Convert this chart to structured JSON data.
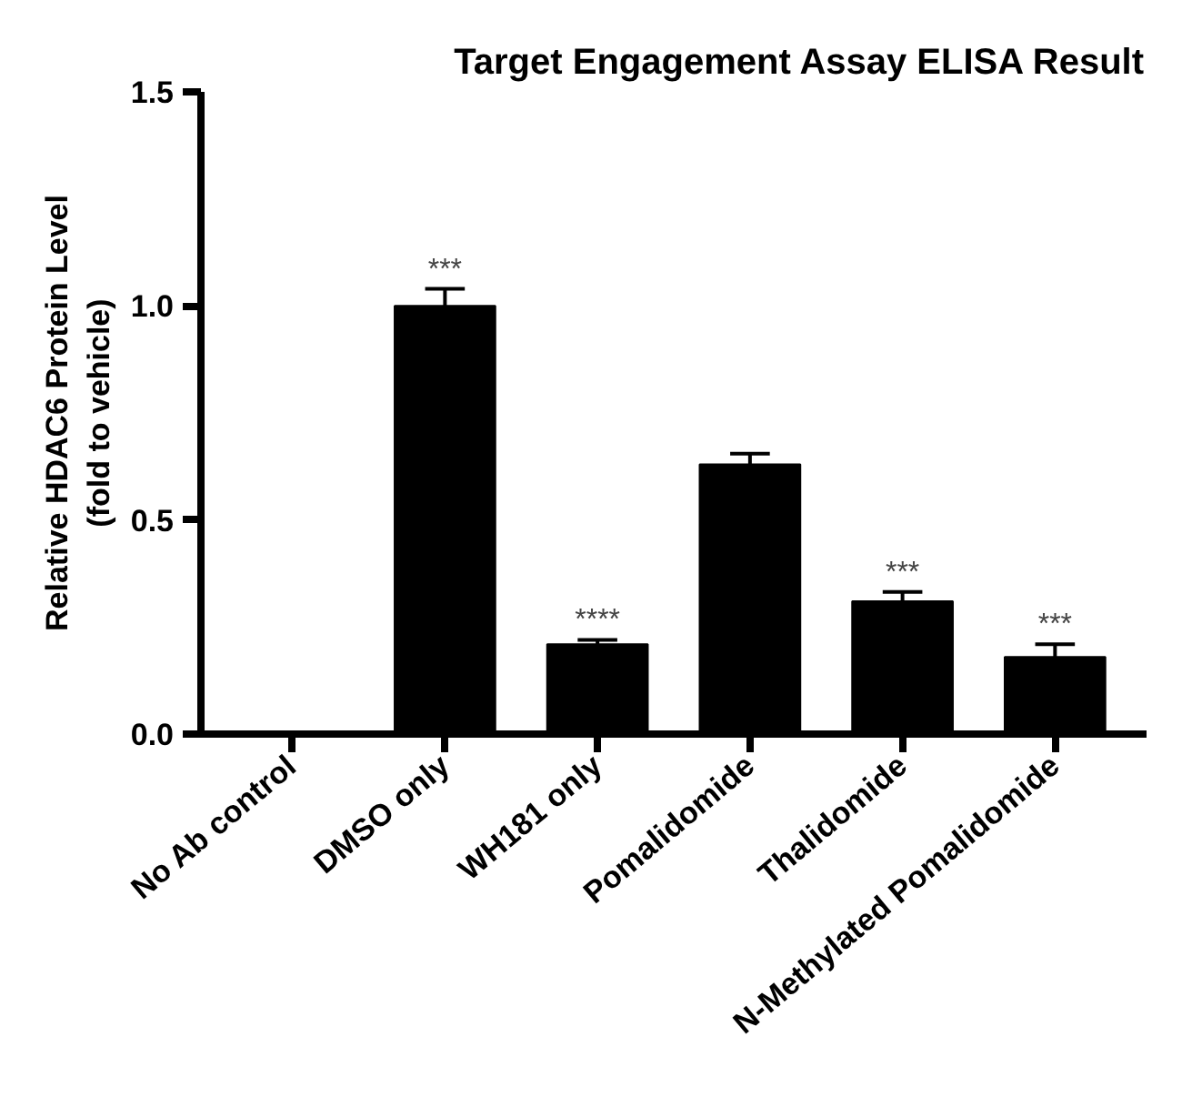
{
  "chart_data": {
    "type": "bar",
    "title": "Target Engagement Assay ELISA Result",
    "ylabel": "Relative HDAC6 Protein Level\n(fold to vehicle)",
    "categories": [
      "No Ab control",
      "DMSO only",
      "WH181 only",
      "Pomalidomide",
      "Thalidomide",
      "N-Methylated Pomalidomide"
    ],
    "values": [
      0,
      1.0,
      0.21,
      0.63,
      0.31,
      0.18
    ],
    "errors": [
      null,
      0.04,
      0.01,
      0.025,
      0.022,
      0.03
    ],
    "color": "#000000",
    "ylim": [
      0,
      1.5
    ],
    "yticks": [
      {
        "value": 0,
        "label": "0.0"
      },
      {
        "value": 0.5,
        "label": "0.5"
      },
      {
        "value": 1.0,
        "label": "1.0"
      },
      {
        "value": 1.5,
        "label": "1.5"
      }
    ],
    "annotations": [
      {
        "text": "***",
        "x": "DMSO only",
        "y": 1.04
      },
      {
        "text": "****",
        "x": "WH181 only",
        "y": 0.22
      },
      {
        "text": "***",
        "x": "Thalidomide",
        "y": 0.332
      },
      {
        "text": "***",
        "x": "N-Methylated Pomalidomide",
        "y": 0.21
      }
    ],
    "grid": false
  }
}
